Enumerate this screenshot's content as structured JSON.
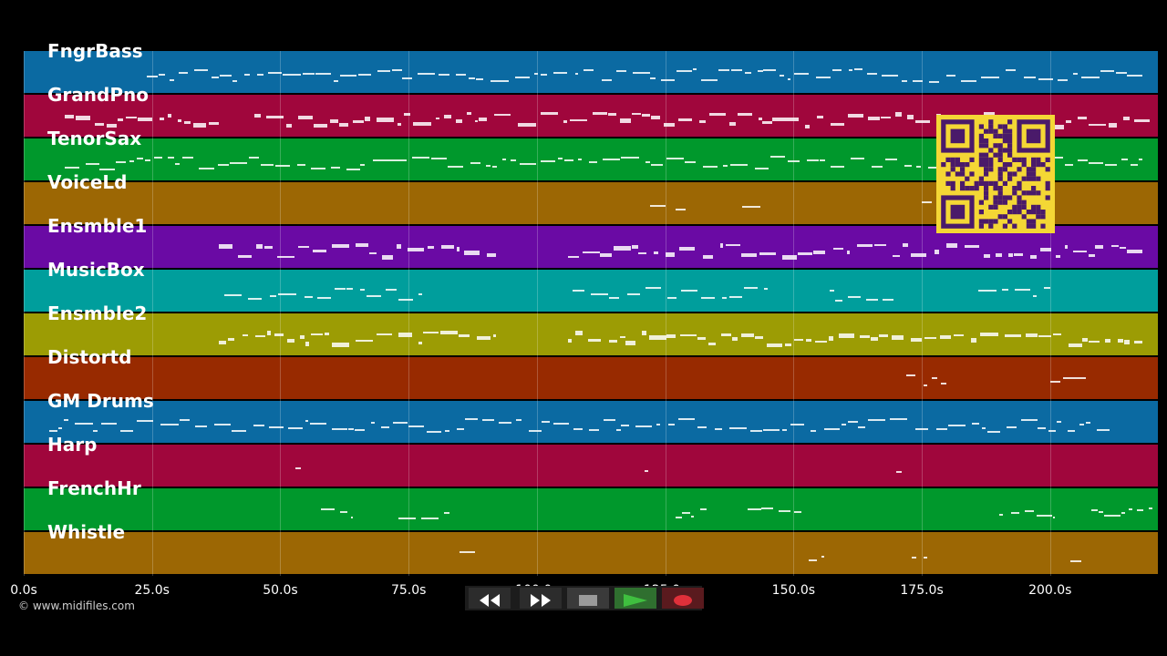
{
  "tracks": [
    {
      "name": "FngrBass",
      "color": "#0b6aa2"
    },
    {
      "name": "GrandPno",
      "color": "#a0063c"
    },
    {
      "name": "TenorSax",
      "color": "#00982c"
    },
    {
      "name": "VoiceLd",
      "color": "#9c6704"
    },
    {
      "name": "Ensmble1",
      "color": "#6a0aa4"
    },
    {
      "name": "MusicBox",
      "color": "#009e9c"
    },
    {
      "name": "Ensmble2",
      "color": "#9c9c04"
    },
    {
      "name": "Distortd",
      "color": "#982a00"
    },
    {
      "name": "GM Drums",
      "color": "#0b6aa2"
    },
    {
      "name": "Harp",
      "color": "#a0063c"
    },
    {
      "name": "FrenchHr",
      "color": "#00982c"
    },
    {
      "name": "Whistle",
      "color": "#9c6704"
    }
  ],
  "time_axis": {
    "max_seconds": 221,
    "ticks": [
      {
        "value": 0,
        "label": "0.0s"
      },
      {
        "value": 25,
        "label": "25.0s"
      },
      {
        "value": 50,
        "label": "50.0s"
      },
      {
        "value": 75,
        "label": "75.0s"
      },
      {
        "value": 100,
        "label": "100.0s"
      },
      {
        "value": 125,
        "label": "125.0s"
      },
      {
        "value": 150,
        "label": "150.0s"
      },
      {
        "value": 175,
        "label": "175.0s"
      },
      {
        "value": 200,
        "label": "200.0s"
      }
    ]
  },
  "copyright": "© www.midifiles.com",
  "transport": {
    "rewind_icon": "rewind-icon",
    "fast_forward_icon": "fast-forward-icon",
    "stop_icon": "stop-icon",
    "play_icon": "play-icon",
    "record_icon": "record-icon",
    "play_color": "#3fbf3f",
    "record_color": "#e0303a"
  },
  "overlay": {
    "qr_color": "#f4d735",
    "qr_module_color": "#4a1a6a"
  }
}
